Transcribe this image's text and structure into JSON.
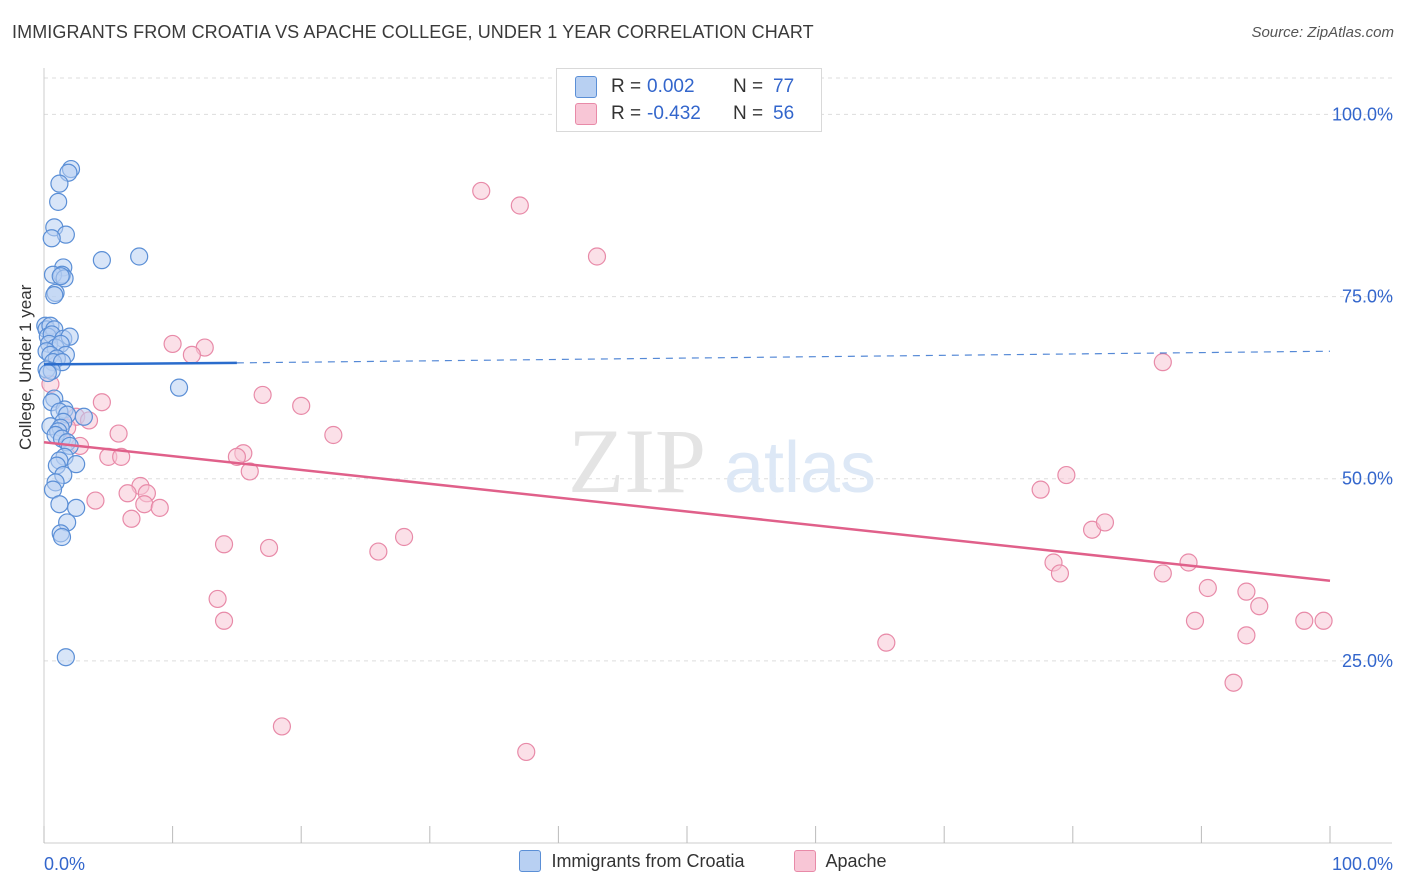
{
  "title": "IMMIGRANTS FROM CROATIA VS APACHE COLLEGE, UNDER 1 YEAR CORRELATION CHART",
  "source": "Source: ZipAtlas.com",
  "watermark": {
    "zip": "ZIP",
    "atlas": "atlas"
  },
  "colors": {
    "blue_fill": "#b8d0f2",
    "blue_stroke": "#5b8fd6",
    "blue_line": "#2a6ccc",
    "pink_fill": "#f8c6d6",
    "pink_stroke": "#e88aa8",
    "pink_line": "#e0608a",
    "tick_label": "#3366cc",
    "grid": "#dddddd"
  },
  "stats": [
    {
      "r_label": "R =",
      "r_value": "0.002",
      "n_label": "N =",
      "n_value": "77"
    },
    {
      "r_label": "R =",
      "r_value": "-0.432",
      "n_label": "N =",
      "n_value": "56"
    }
  ],
  "chart_data": {
    "type": "scatter",
    "title": "IMMIGRANTS FROM CROATIA VS APACHE COLLEGE, UNDER 1 YEAR CORRELATION CHART",
    "xlabel": "",
    "ylabel": "College, Under 1 year",
    "xlim": [
      0,
      100
    ],
    "ylim": [
      0,
      105
    ],
    "x_tick_labels": [
      {
        "value": 0,
        "label": "0.0%"
      },
      {
        "value": 100,
        "label": "100.0%"
      }
    ],
    "y_tick_labels": [
      {
        "value": 25,
        "label": "25.0%"
      },
      {
        "value": 50,
        "label": "50.0%"
      },
      {
        "value": 75,
        "label": "75.0%"
      },
      {
        "value": 100,
        "label": "100.0%"
      }
    ],
    "grid": true,
    "legend_position": "bottom",
    "series": [
      {
        "name": "Immigrants from Croatia",
        "color": "#5b8fd6",
        "trend": {
          "x": [
            0,
            15
          ],
          "y": [
            65.7,
            65.9
          ],
          "extended_x": [
            15,
            100
          ],
          "extended_y": [
            65.9,
            67.5
          ]
        },
        "points": [
          [
            2.1,
            92.5
          ],
          [
            1.9,
            92.0
          ],
          [
            1.2,
            90.5
          ],
          [
            1.1,
            88.0
          ],
          [
            0.8,
            84.5
          ],
          [
            1.7,
            83.5
          ],
          [
            0.6,
            83.0
          ],
          [
            4.5,
            80.0
          ],
          [
            7.4,
            80.5
          ],
          [
            1.5,
            79.0
          ],
          [
            1.4,
            78.0
          ],
          [
            0.7,
            78.0
          ],
          [
            1.6,
            77.5
          ],
          [
            1.3,
            77.8
          ],
          [
            0.9,
            75.5
          ],
          [
            0.8,
            75.2
          ],
          [
            0.1,
            71.0
          ],
          [
            0.2,
            70.5
          ],
          [
            0.5,
            71.0
          ],
          [
            0.8,
            70.5
          ],
          [
            0.3,
            69.5
          ],
          [
            0.6,
            69.8
          ],
          [
            1.5,
            69.2
          ],
          [
            2.0,
            69.5
          ],
          [
            0.4,
            68.5
          ],
          [
            0.9,
            68.0
          ],
          [
            1.3,
            68.5
          ],
          [
            0.2,
            67.5
          ],
          [
            1.7,
            67.0
          ],
          [
            0.5,
            67.0
          ],
          [
            1.0,
            66.5
          ],
          [
            0.7,
            66.0
          ],
          [
            1.4,
            66.0
          ],
          [
            0.2,
            65.0
          ],
          [
            0.6,
            64.8
          ],
          [
            0.3,
            64.5
          ],
          [
            10.5,
            62.5
          ],
          [
            0.8,
            61.0
          ],
          [
            0.6,
            60.5
          ],
          [
            1.6,
            59.5
          ],
          [
            1.2,
            59.2
          ],
          [
            1.8,
            58.8
          ],
          [
            3.1,
            58.5
          ],
          [
            1.5,
            57.8
          ],
          [
            0.5,
            57.2
          ],
          [
            1.3,
            57.0
          ],
          [
            1.1,
            56.5
          ],
          [
            0.9,
            56.0
          ],
          [
            1.4,
            55.5
          ],
          [
            1.8,
            55.0
          ],
          [
            2.0,
            54.5
          ],
          [
            1.6,
            53.0
          ],
          [
            1.2,
            52.5
          ],
          [
            2.5,
            52.0
          ],
          [
            1.0,
            51.8
          ],
          [
            1.5,
            50.5
          ],
          [
            0.9,
            49.5
          ],
          [
            0.7,
            48.5
          ],
          [
            1.2,
            46.5
          ],
          [
            2.5,
            46.0
          ],
          [
            1.8,
            44.0
          ],
          [
            1.3,
            42.5
          ],
          [
            1.4,
            42.0
          ],
          [
            1.7,
            25.5
          ]
        ]
      },
      {
        "name": "Apache",
        "color": "#e88aa8",
        "trend": {
          "x": [
            0,
            100
          ],
          "y": [
            55.0,
            36.0
          ]
        },
        "points": [
          [
            34.0,
            89.5
          ],
          [
            37.0,
            87.5
          ],
          [
            43.0,
            80.5
          ],
          [
            10.0,
            68.5
          ],
          [
            12.5,
            68.0
          ],
          [
            11.5,
            67.0
          ],
          [
            87.0,
            66.0
          ],
          [
            0.5,
            63.0
          ],
          [
            17.0,
            61.5
          ],
          [
            4.5,
            60.5
          ],
          [
            20.0,
            60.0
          ],
          [
            2.5,
            58.5
          ],
          [
            3.5,
            58.0
          ],
          [
            1.8,
            57.0
          ],
          [
            5.8,
            56.2
          ],
          [
            22.5,
            56.0
          ],
          [
            2.8,
            54.5
          ],
          [
            5.0,
            53.0
          ],
          [
            15.5,
            53.5
          ],
          [
            15.0,
            53.0
          ],
          [
            6.0,
            53.0
          ],
          [
            16.0,
            51.0
          ],
          [
            7.5,
            49.0
          ],
          [
            8.0,
            48.0
          ],
          [
            6.5,
            48.0
          ],
          [
            77.5,
            48.5
          ],
          [
            79.5,
            50.5
          ],
          [
            4.0,
            47.0
          ],
          [
            7.8,
            46.5
          ],
          [
            9.0,
            46.0
          ],
          [
            6.8,
            44.5
          ],
          [
            81.5,
            43.0
          ],
          [
            82.5,
            44.0
          ],
          [
            14.0,
            41.0
          ],
          [
            17.5,
            40.5
          ],
          [
            26.0,
            40.0
          ],
          [
            28.0,
            42.0
          ],
          [
            78.5,
            38.5
          ],
          [
            79.0,
            37.0
          ],
          [
            87.0,
            37.0
          ],
          [
            89.0,
            38.5
          ],
          [
            90.5,
            35.0
          ],
          [
            93.5,
            34.5
          ],
          [
            94.5,
            32.5
          ],
          [
            13.5,
            33.5
          ],
          [
            14.0,
            30.5
          ],
          [
            89.5,
            30.5
          ],
          [
            98.0,
            30.5
          ],
          [
            99.5,
            30.5
          ],
          [
            93.5,
            28.5
          ],
          [
            65.5,
            27.5
          ],
          [
            92.5,
            22.0
          ],
          [
            18.5,
            16.0
          ],
          [
            37.5,
            12.5
          ]
        ]
      }
    ]
  },
  "legend": [
    {
      "label": "Immigrants from Croatia"
    },
    {
      "label": "Apache"
    }
  ]
}
